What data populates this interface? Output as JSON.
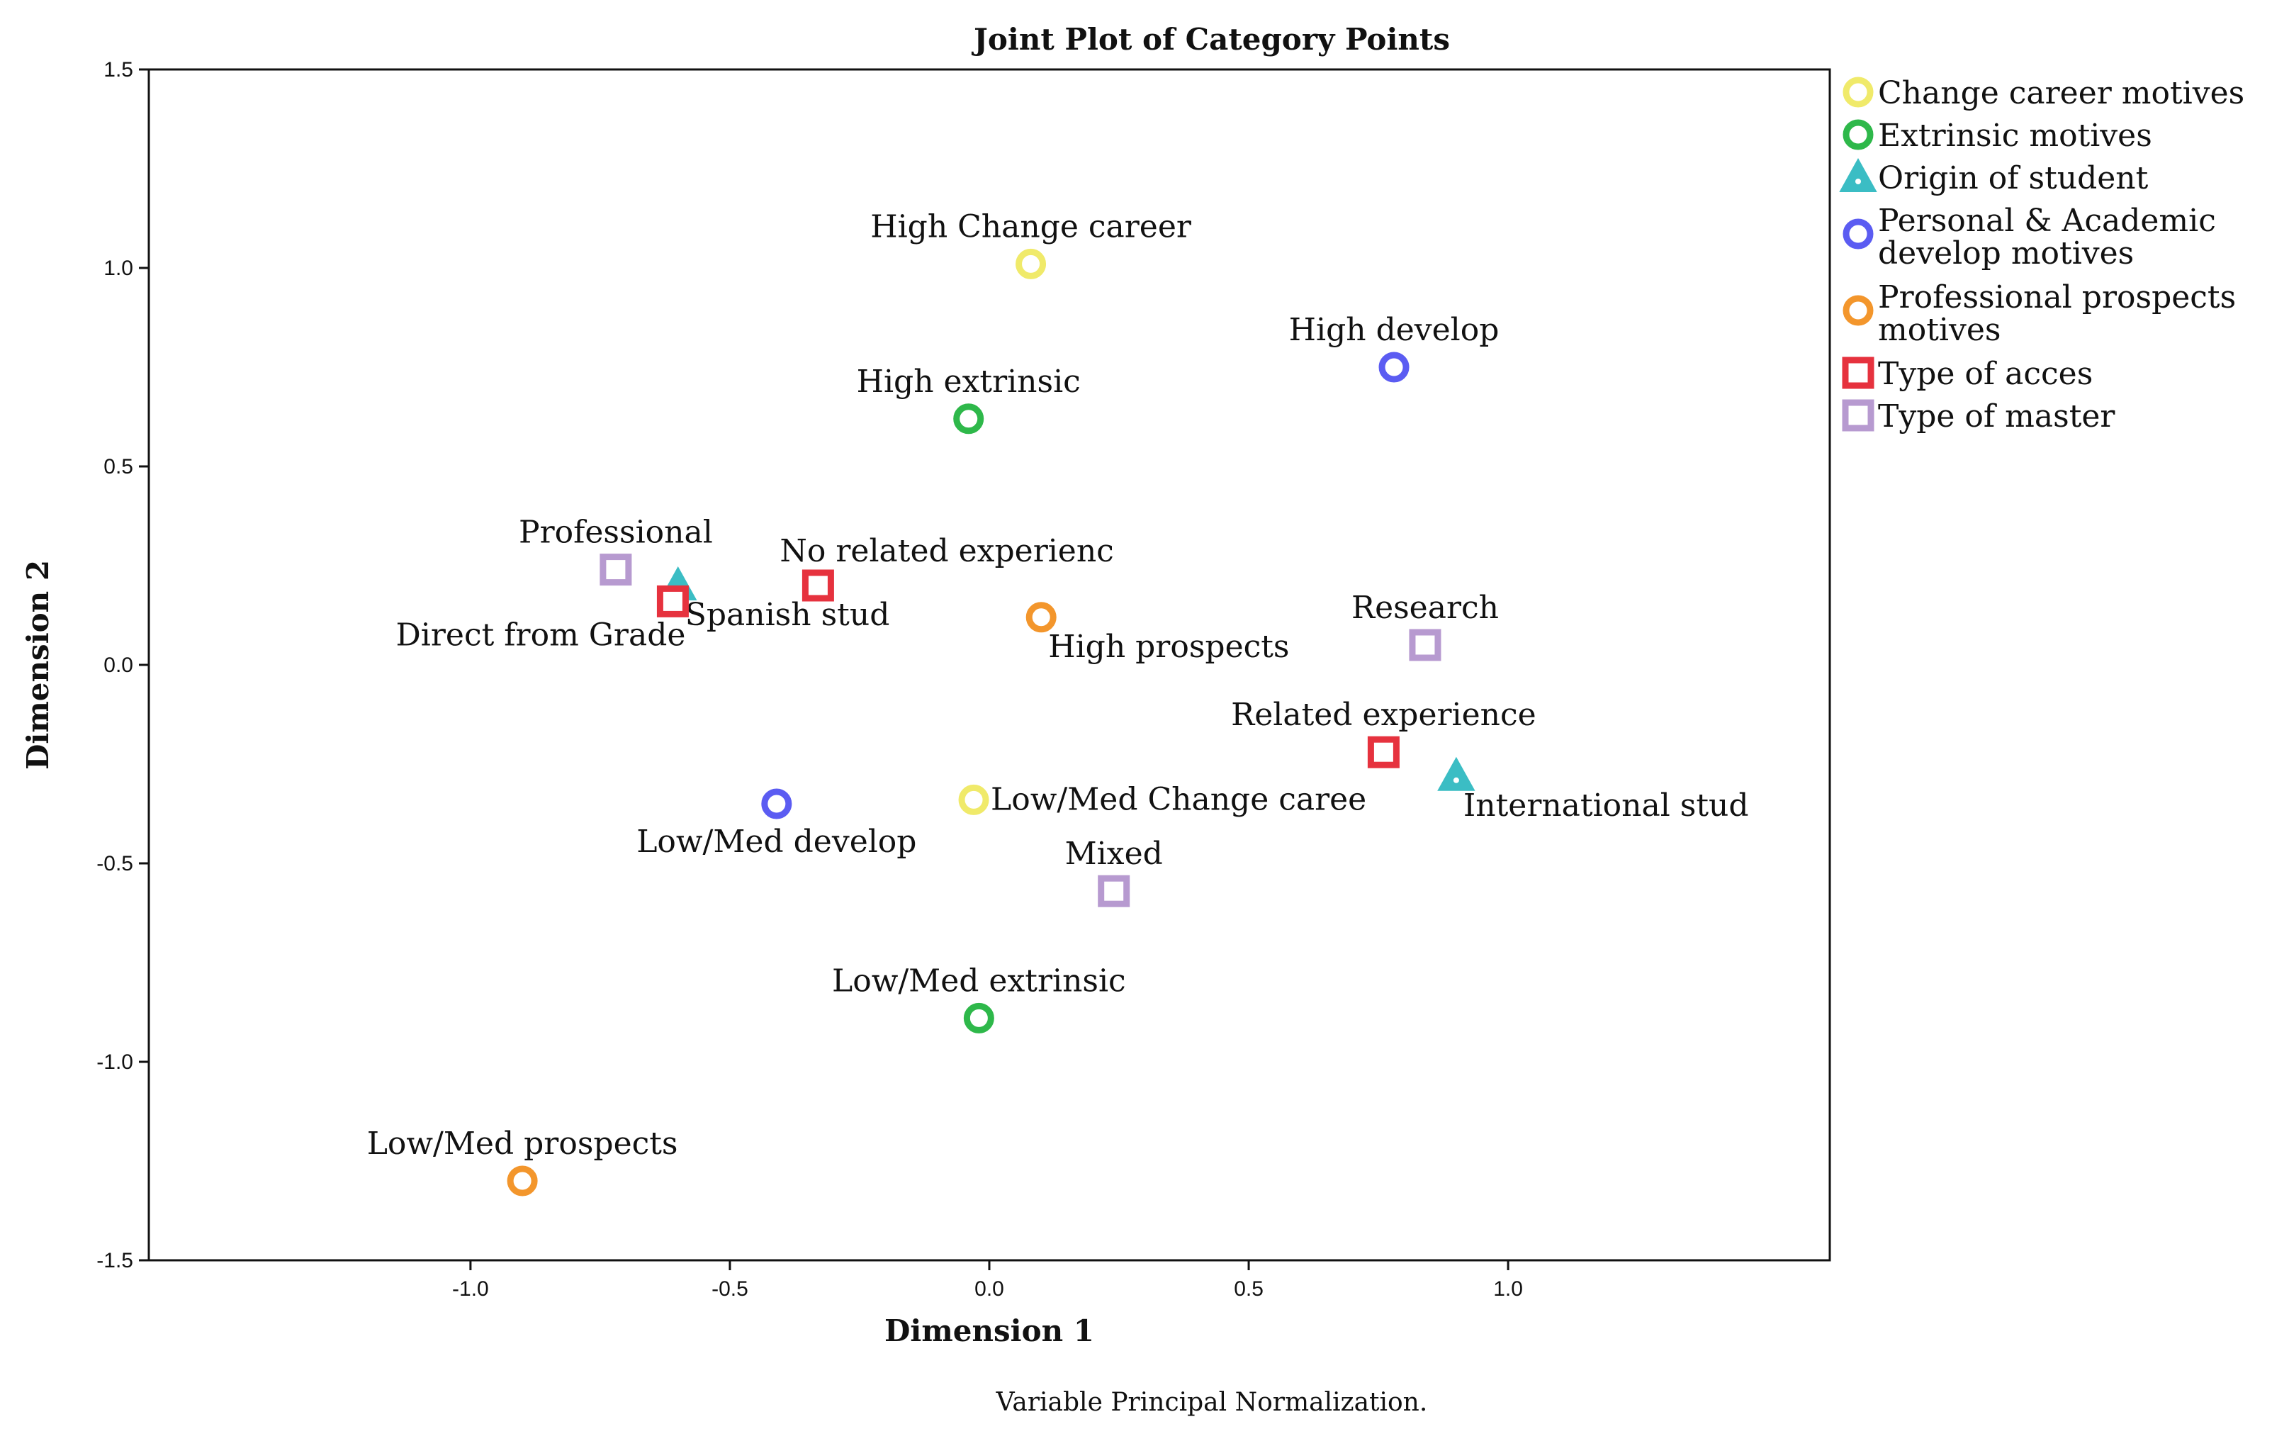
{
  "chart_data": {
    "type": "scatter",
    "title": "Joint Plot of Category Points",
    "xlabel": "Dimension 1",
    "ylabel": "Dimension 2",
    "xlim": [
      -1.62,
      1.62
    ],
    "ylim": [
      -1.5,
      1.5
    ],
    "xticks": [
      -1.0,
      -0.5,
      0.0,
      0.5,
      1.0
    ],
    "xtick_labels": [
      "-1.0",
      "-0.5",
      "0.0",
      "0.5",
      "1.0"
    ],
    "yticks": [
      -1.5,
      -1.0,
      -0.5,
      0.0,
      0.5,
      1.0,
      1.5
    ],
    "ytick_labels": [
      "-1.5",
      "-1.0",
      "-0.5",
      "0.0",
      "0.5",
      "1.0",
      "1.5"
    ],
    "grid": false,
    "legend_position": "right",
    "note": "Variable Principal Normalization.",
    "series": [
      {
        "name": "Change career motives",
        "marker": "circle",
        "color": "#f0ea6a",
        "points": [
          {
            "label": "High Change career",
            "x": 0.08,
            "y": 1.01,
            "label_pos": "above"
          },
          {
            "label": "Low/Med Change caree",
            "x": -0.03,
            "y": -0.34,
            "label_pos": "right"
          }
        ]
      },
      {
        "name": "Extrinsic motives",
        "marker": "circle",
        "color": "#2eb84a",
        "points": [
          {
            "label": "High extrinsic",
            "x": -0.04,
            "y": 0.62,
            "label_pos": "above"
          },
          {
            "label": "Low/Med extrinsic",
            "x": -0.02,
            "y": -0.89,
            "label_pos": "above"
          }
        ]
      },
      {
        "name": "Origin of student",
        "marker": "triangle",
        "color": "#3bbdc4",
        "points": [
          {
            "label": "Spanish stud",
            "x": -0.6,
            "y": 0.2,
            "label_pos": "below-right"
          },
          {
            "label": "International stud",
            "x": 0.9,
            "y": -0.28,
            "label_pos": "below-right"
          }
        ]
      },
      {
        "name": "Personal & Academic develop motives",
        "marker": "circle",
        "color": "#5b5cf2",
        "points": [
          {
            "label": "High develop",
            "x": 0.78,
            "y": 0.75,
            "label_pos": "above"
          },
          {
            "label": "Low/Med develop",
            "x": -0.41,
            "y": -0.35,
            "label_pos": "below"
          }
        ]
      },
      {
        "name": "Professional prospects motives",
        "marker": "circle",
        "color": "#f3962c",
        "points": [
          {
            "label": "High prospects",
            "x": 0.1,
            "y": 0.12,
            "label_pos": "below-right"
          },
          {
            "label": "Low/Med prospects",
            "x": -0.9,
            "y": -1.3,
            "label_pos": "above"
          }
        ]
      },
      {
        "name": "Type of acces",
        "marker": "square",
        "color": "#e6323e",
        "points": [
          {
            "label": "Direct from Grade",
            "x": -0.61,
            "y": 0.16,
            "label_pos": "below-left"
          },
          {
            "label": "No related experienc",
            "x": -0.33,
            "y": 0.2,
            "label_pos": "above-right"
          },
          {
            "label": "Related experience",
            "x": 0.76,
            "y": -0.22,
            "label_pos": "above"
          }
        ]
      },
      {
        "name": "Type of master",
        "marker": "square",
        "color": "#b79ad0",
        "points": [
          {
            "label": "Professional",
            "x": -0.72,
            "y": 0.24,
            "label_pos": "above"
          },
          {
            "label": "Research",
            "x": 0.84,
            "y": 0.05,
            "label_pos": "above"
          },
          {
            "label": "Mixed",
            "x": 0.24,
            "y": -0.57,
            "label_pos": "above"
          }
        ]
      }
    ]
  },
  "legend": {
    "items": [
      {
        "lines": [
          "Change career motives"
        ]
      },
      {
        "lines": [
          "Extrinsic motives"
        ]
      },
      {
        "lines": [
          "Origin of student"
        ]
      },
      {
        "lines": [
          "Personal & Academic",
          "develop motives"
        ]
      },
      {
        "lines": [
          "Professional prospects",
          "motives"
        ]
      },
      {
        "lines": [
          "Type of acces"
        ]
      },
      {
        "lines": [
          "Type of master"
        ]
      }
    ]
  }
}
